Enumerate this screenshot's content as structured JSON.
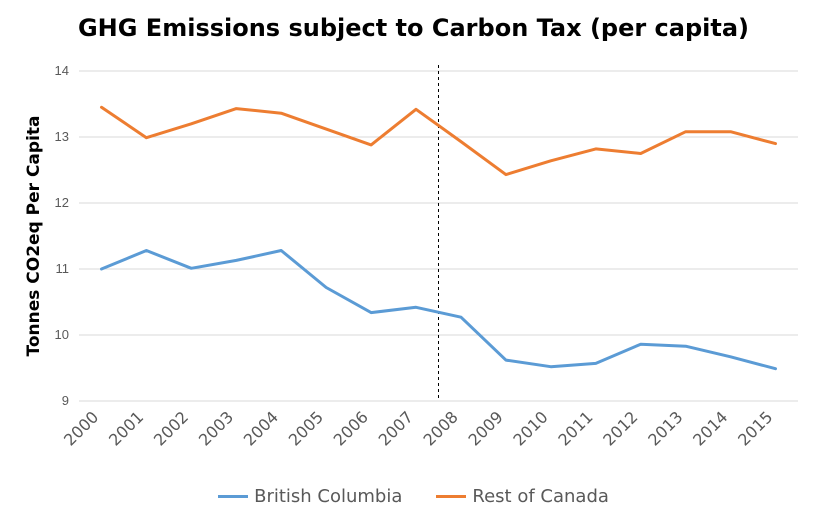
{
  "chart_data": {
    "type": "line",
    "title": "GHG Emissions subject to Carbon Tax (per capita)",
    "xlabel": "",
    "ylabel": "Tonnes CO2eq Per Capita",
    "ylim": [
      9,
      14
    ],
    "yticks": [
      "9",
      "10",
      "11",
      "12",
      "13",
      "14"
    ],
    "categories": [
      "2000",
      "2001",
      "2002",
      "2003",
      "2004",
      "2005",
      "2006",
      "2007",
      "2008",
      "2009",
      "2010",
      "2011",
      "2012",
      "2013",
      "2014",
      "2015"
    ],
    "series": [
      {
        "name": "British Columbia",
        "color": "#5b9bd5",
        "values": [
          11.0,
          11.28,
          11.01,
          11.13,
          11.28,
          10.72,
          10.34,
          10.42,
          10.27,
          9.62,
          9.52,
          9.57,
          9.86,
          9.83,
          9.67,
          9.49
        ]
      },
      {
        "name": "Rest of Canada",
        "color": "#ed7d31",
        "values": [
          13.45,
          12.99,
          13.2,
          13.43,
          13.36,
          13.12,
          12.88,
          13.42,
          12.93,
          12.43,
          12.64,
          12.82,
          12.75,
          13.08,
          13.08,
          12.9
        ]
      }
    ],
    "annotations": [
      {
        "type": "vertical-dashed-line",
        "x": "2008"
      }
    ],
    "grid": true,
    "legend": "bottom"
  }
}
